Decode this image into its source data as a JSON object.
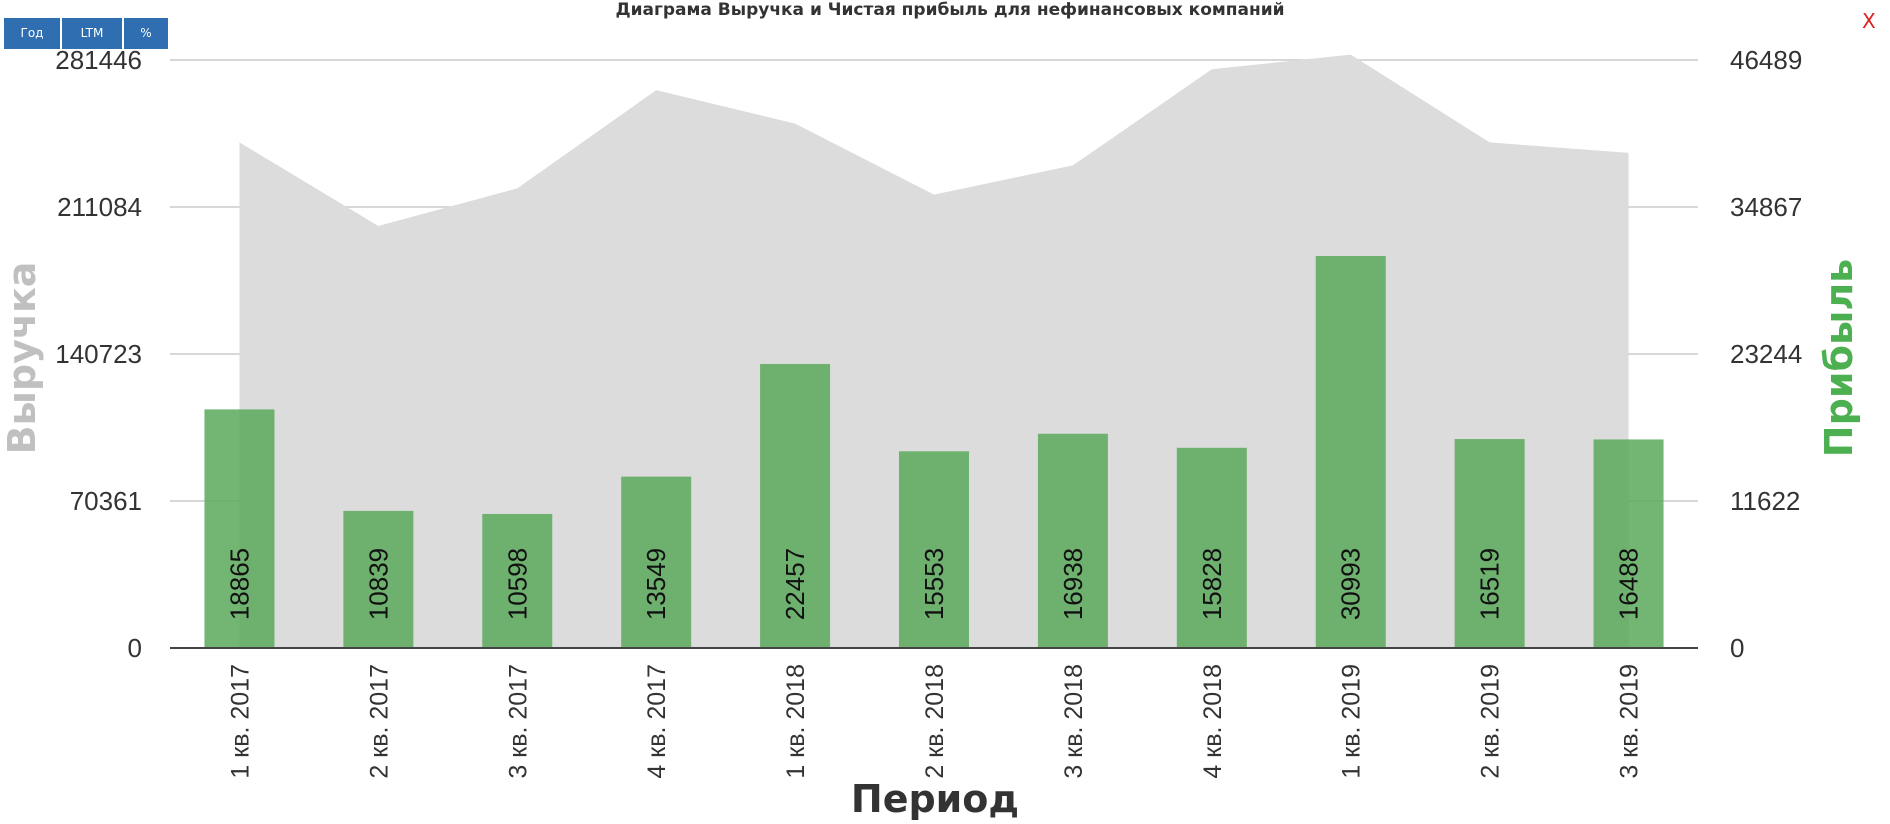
{
  "toolbar": {
    "year_label": "Год",
    "ltm_label": "LTM",
    "percent_label": "%"
  },
  "close_label": "X",
  "chart_data": {
    "type": "bar",
    "title": "Диаграма Выручка и Чистая прибыль для нефинансовых компаний",
    "xlabel": "Период",
    "ylabel_left": "Выручка",
    "ylabel_right": "Прибыль",
    "categories": [
      "1 кв. 2017",
      "2 кв. 2017",
      "3 кв. 2017",
      "4 кв. 2017",
      "1 кв. 2018",
      "2 кв. 2018",
      "3 кв. 2018",
      "4 кв. 2018",
      "1 кв. 2019",
      "2 кв. 2019",
      "3 кв. 2019"
    ],
    "left_ticks": [
      "0",
      "70361",
      "140723",
      "211084",
      "281446"
    ],
    "right_ticks": [
      "0",
      "11622",
      "23244",
      "34867",
      "46489"
    ],
    "ylim_left": [
      0,
      281446
    ],
    "ylim_right": [
      0,
      46489
    ],
    "grid": true,
    "series": [
      {
        "name": "Выручка",
        "type": "area",
        "axis": "left",
        "color": "#dcdcdc",
        "values": [
          242000,
          202000,
          220000,
          267000,
          251000,
          217000,
          231000,
          277000,
          284000,
          242000,
          237000
        ]
      },
      {
        "name": "Прибыль",
        "type": "bar",
        "axis": "right",
        "color": "#5aa85a",
        "values": [
          18865,
          10839,
          10598,
          13549,
          22457,
          15553,
          16938,
          15828,
          30993,
          16519,
          16488
        ],
        "labels": [
          "18865",
          "10839",
          "10598",
          "13549",
          "22457",
          "15553",
          "16938",
          "15828",
          "30993",
          "16519",
          "16488"
        ]
      }
    ]
  }
}
